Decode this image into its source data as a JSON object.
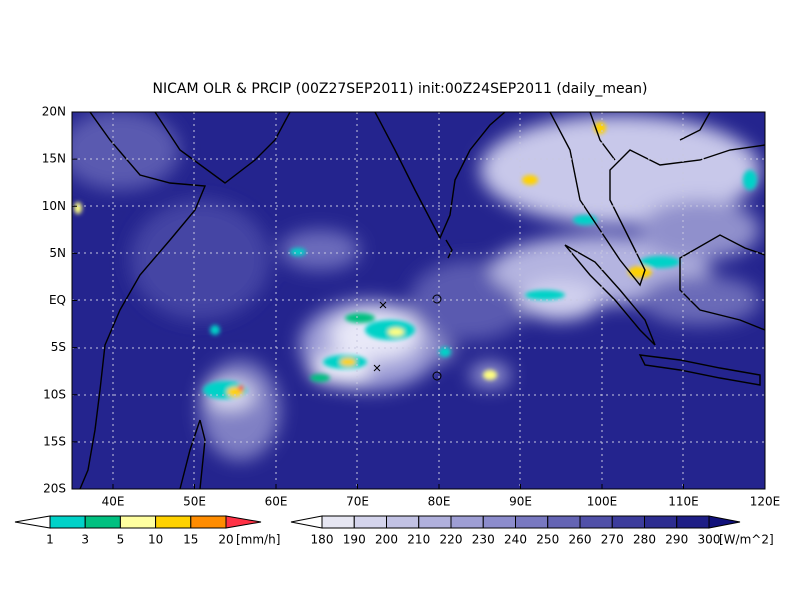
{
  "title": "NICAM OLR & PRCIP (00Z27SEP2011) init:00Z24SEP2011 (daily_mean)",
  "lat_labels": [
    "20N",
    "15N",
    "10N",
    "5N",
    "EQ",
    "5S",
    "10S",
    "15S",
    "20S"
  ],
  "lon_labels": [
    "40E",
    "50E",
    "60E",
    "70E",
    "80E",
    "90E",
    "100E",
    "110E",
    "120E"
  ],
  "precip_colorbar": {
    "labels": [
      1,
      3,
      5,
      10,
      15,
      20
    ],
    "unit": "[mm/h]",
    "colors": [
      "#ffffff",
      "#00d2c8",
      "#00c080",
      "#ffffa0",
      "#ffd200",
      "#ff8c00",
      "#ff3246"
    ]
  },
  "olr_colorbar": {
    "labels": [
      180,
      190,
      200,
      210,
      220,
      230,
      240,
      250,
      260,
      270,
      280,
      290,
      300
    ],
    "unit": "[W/m^2]",
    "colors": [
      "#ffffff",
      "#e6e6f2",
      "#d4d4ec",
      "#c2c2e4",
      "#b0b0dc",
      "#9e9ed4",
      "#8c8ccc",
      "#7878c0",
      "#6464b4",
      "#5050a8",
      "#3c3c9c",
      "#2c2c90",
      "#1e1e86",
      "#10107a"
    ]
  }
}
